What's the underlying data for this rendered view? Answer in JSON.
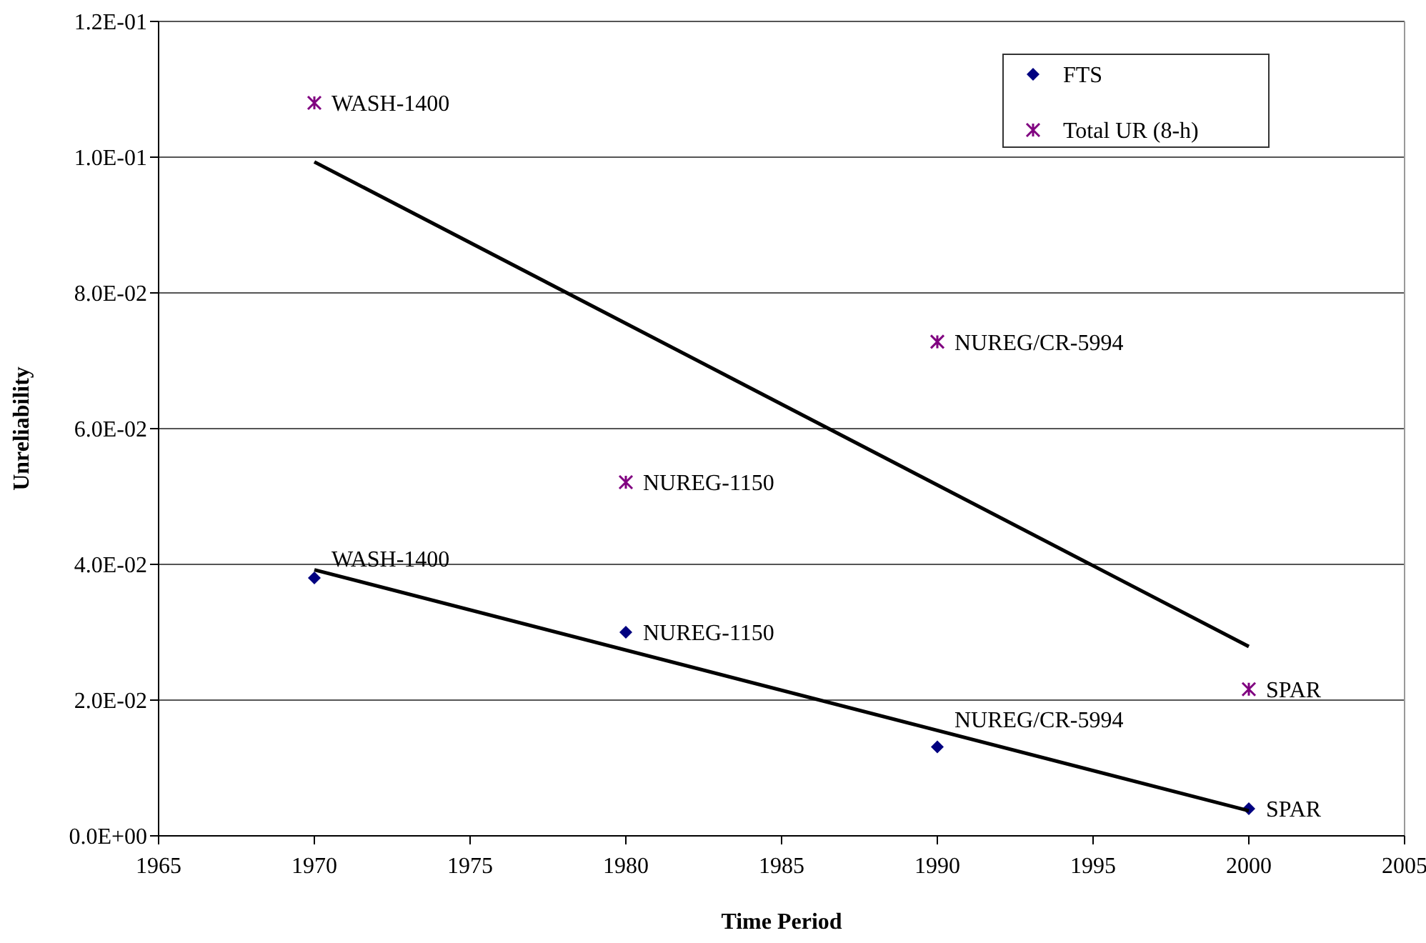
{
  "chart_data": {
    "type": "scatter",
    "xlabel": "Time Period",
    "ylabel": "Unreliability",
    "xlim": [
      1965,
      2005
    ],
    "xticks": [
      1965,
      1970,
      1975,
      1980,
      1985,
      1990,
      1995,
      2000,
      2005
    ],
    "ylim": [
      0,
      0.12
    ],
    "yticks": [
      {
        "value": 0,
        "label": "0.0E+00"
      },
      {
        "value": 0.02,
        "label": "2.0E-02"
      },
      {
        "value": 0.04,
        "label": "4.0E-02"
      },
      {
        "value": 0.06,
        "label": "6.0E-02"
      },
      {
        "value": 0.08,
        "label": "8.0E-02"
      },
      {
        "value": 0.1,
        "label": "1.0E-01"
      },
      {
        "value": 0.12,
        "label": "1.2E-01"
      }
    ],
    "grid": "y",
    "legend": "top right",
    "series": [
      {
        "name": "FTS",
        "marker": "diamond",
        "color": "#000080",
        "x": [
          1970,
          1980,
          1990,
          2000
        ],
        "values": [
          0.038,
          0.03,
          0.0131,
          0.004
        ]
      },
      {
        "name": "Total UR (8-h)",
        "marker": "cross",
        "color": "#800080",
        "x": [
          1970,
          1980,
          1990,
          2000
        ],
        "values": [
          0.108,
          0.0521,
          0.0728,
          0.0216
        ]
      },
      {
        "type": "line",
        "color": "#000000",
        "marker": "none",
        "x": [
          1970,
          2000
        ],
        "values": [
          0.0392,
          0.0037
        ]
      },
      {
        "type": "line",
        "color": "#000000",
        "marker": "none",
        "x": [
          1970,
          2000
        ],
        "values": [
          0.0993,
          0.0279
        ]
      }
    ],
    "annotations": [
      {
        "text": "WASH-1400",
        "x": 1970,
        "y": 0.038
      },
      {
        "text": "NUREG-1150",
        "x": 1980,
        "y": 0.03
      },
      {
        "text": "NUREG/CR-5994",
        "x": 1990,
        "y": 0.0131
      },
      {
        "text": "SPAR",
        "x": 2000,
        "y": 0.004
      },
      {
        "text": "WASH-1400",
        "x": 1970,
        "y": 0.108
      },
      {
        "text": "NUREG-1150",
        "x": 1980,
        "y": 0.0521
      },
      {
        "text": "NUREG/CR-5994",
        "x": 1990,
        "y": 0.0728
      },
      {
        "text": "SPAR",
        "x": 2000,
        "y": 0.0216
      }
    ]
  }
}
